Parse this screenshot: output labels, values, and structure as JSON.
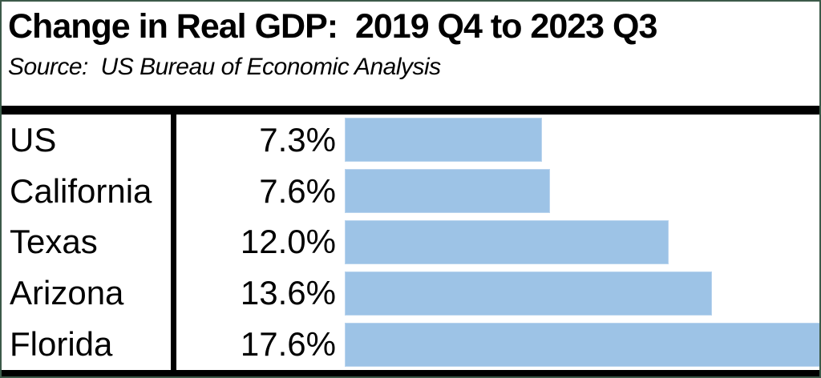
{
  "header": {
    "title": "Change in Real GDP:  2019 Q4 to 2023 Q3",
    "source": "Source:  US Bureau of Economic Analysis"
  },
  "chart_data": {
    "type": "bar",
    "orientation": "horizontal",
    "title": "Change in Real GDP:  2019 Q4 to 2023 Q3",
    "subtitle": "Source:  US Bureau of Economic Analysis",
    "categories": [
      "US",
      "California",
      "Texas",
      "Arizona",
      "Florida"
    ],
    "values": [
      7.3,
      7.6,
      12.0,
      13.6,
      17.6
    ],
    "value_labels": [
      "7.3%",
      "7.6%",
      "12.0%",
      "13.6%",
      "17.6%"
    ],
    "xlabel": "",
    "ylabel": "",
    "xlim": [
      0,
      17.6
    ],
    "grid": false,
    "legend": false,
    "bar_color": "#9DC3E6",
    "axis_color": "#000000",
    "frame_border_color": "#3C5A49"
  }
}
